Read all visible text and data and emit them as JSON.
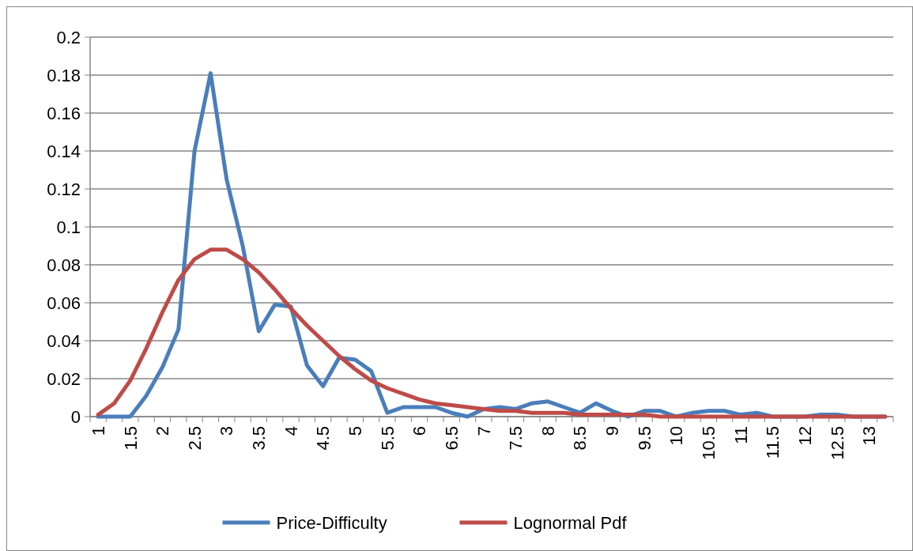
{
  "chart_data": {
    "type": "line",
    "categories": [
      "1",
      null,
      "1.5",
      null,
      "2",
      null,
      "2.5",
      null,
      "3",
      null,
      "3.5",
      null,
      "4",
      null,
      "4.5",
      null,
      "5",
      null,
      "5.5",
      null,
      "6",
      null,
      "6.5",
      null,
      "7",
      null,
      "7.5",
      null,
      "8",
      null,
      "8.5",
      null,
      "9",
      null,
      "9.5",
      null,
      "10",
      null,
      "10.5",
      null,
      "11",
      null,
      "11.5",
      null,
      "12",
      null,
      "12.5",
      null,
      "13",
      null
    ],
    "series": [
      {
        "name": "Price-Difficulty",
        "color": "#4a7ebb",
        "values": [
          0,
          0,
          0,
          0.011,
          0.026,
          0.046,
          0.14,
          0.181,
          0.125,
          0.09,
          0.045,
          0.059,
          0.058,
          0.027,
          0.016,
          0.031,
          0.03,
          0.024,
          0.002,
          0.005,
          0.005,
          0.005,
          0.002,
          0,
          0.004,
          0.005,
          0.004,
          0.007,
          0.008,
          0.005,
          0.002,
          0.007,
          0.003,
          0,
          0.003,
          0.003,
          0,
          0.002,
          0.003,
          0.003,
          0.001,
          0.002,
          0,
          0,
          0,
          0.001,
          0.001,
          0,
          0,
          0
        ]
      },
      {
        "name": "Lognormal Pdf",
        "color": "#be4b48",
        "values": [
          0.001,
          0.007,
          0.019,
          0.036,
          0.055,
          0.072,
          0.083,
          0.088,
          0.088,
          0.083,
          0.076,
          0.067,
          0.057,
          0.048,
          0.04,
          0.032,
          0.025,
          0.019,
          0.015,
          0.012,
          0.009,
          0.007,
          0.006,
          0.005,
          0.004,
          0.003,
          0.003,
          0.002,
          0.002,
          0.002,
          0.001,
          0.001,
          0.001,
          0.001,
          0.001,
          0,
          0,
          0,
          0,
          0,
          0,
          0,
          0,
          0,
          0,
          0,
          0,
          0,
          0,
          0
        ]
      }
    ],
    "ylim": [
      0,
      0.2
    ],
    "yticks": [
      0,
      0.02,
      0.04,
      0.06,
      0.08,
      0.1,
      0.12,
      0.14,
      0.16,
      0.18,
      0.2
    ],
    "grid": "y",
    "legend": "bottom",
    "marker": "none",
    "line_style": "solid"
  }
}
